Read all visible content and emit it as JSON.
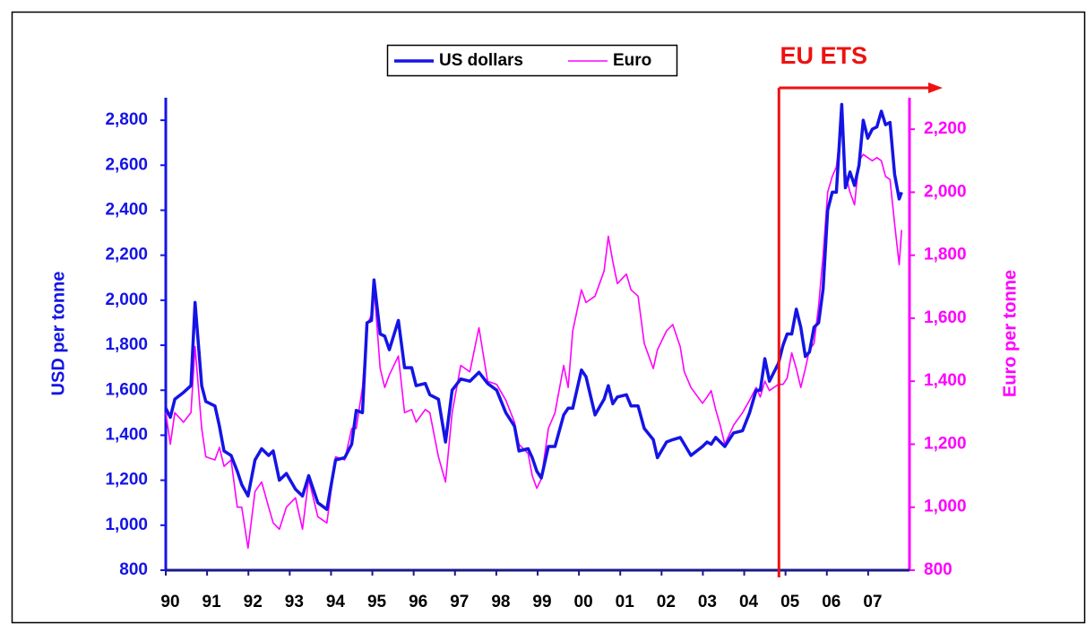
{
  "chart_data": {
    "type": "line",
    "y_label": "USD per tonne",
    "y2_label": "Euro per tonne",
    "legend": "top",
    "grid": false,
    "annotation": {
      "text": "EU ETS",
      "x": 2004.84,
      "color": "#ee1111"
    },
    "xlim": [
      1990,
      2008
    ],
    "xticks": [
      {
        "value": 1990,
        "label": "90"
      },
      {
        "value": 1991,
        "label": "91"
      },
      {
        "value": 1992,
        "label": "92"
      },
      {
        "value": 1993,
        "label": "93"
      },
      {
        "value": 1994,
        "label": "94"
      },
      {
        "value": 1995,
        "label": "95"
      },
      {
        "value": 1996,
        "label": "96"
      },
      {
        "value": 1997,
        "label": "97"
      },
      {
        "value": 1998,
        "label": "98"
      },
      {
        "value": 1999,
        "label": "99"
      },
      {
        "value": 2000,
        "label": "00"
      },
      {
        "value": 2001,
        "label": "01"
      },
      {
        "value": 2002,
        "label": "02"
      },
      {
        "value": 2003,
        "label": "03"
      },
      {
        "value": 2004,
        "label": "04"
      },
      {
        "value": 2005,
        "label": "05"
      },
      {
        "value": 2006,
        "label": "06"
      },
      {
        "value": 2007,
        "label": "07"
      }
    ],
    "ylim": [
      800,
      2900
    ],
    "yticks": [
      800,
      {
        "value": 1000,
        "label": "1,000"
      },
      {
        "value": 1200,
        "label": "1,200"
      },
      {
        "value": 1400,
        "label": "1,400"
      },
      {
        "value": 1600,
        "label": "1,600"
      },
      {
        "value": 1800,
        "label": "1,800"
      },
      {
        "value": 2000,
        "label": "2,000"
      },
      {
        "value": 2200,
        "label": "2,200"
      },
      {
        "value": 2400,
        "label": "2,400"
      },
      {
        "value": 2600,
        "label": "2,600"
      },
      {
        "value": 2800,
        "label": "2,800"
      }
    ],
    "y2lim": [
      800,
      2300
    ],
    "y2ticks": [
      800,
      {
        "value": 1000,
        "label": "1,000"
      },
      {
        "value": 1200,
        "label": "1,200"
      },
      {
        "value": 1400,
        "label": "1,400"
      },
      {
        "value": 1600,
        "label": "1,600"
      },
      {
        "value": 1800,
        "label": "1,800"
      },
      {
        "value": 2000,
        "label": "2,000"
      },
      {
        "value": 2200,
        "label": "2,200"
      }
    ],
    "x": [
      1990.0,
      1990.11,
      1990.22,
      1990.43,
      1990.61,
      1990.71,
      1990.87,
      1990.97,
      1991.19,
      1991.3,
      1991.41,
      1991.58,
      1991.73,
      1991.84,
      1991.99,
      1992.16,
      1992.32,
      1992.49,
      1992.6,
      1992.75,
      1992.92,
      1993.14,
      1993.31,
      1993.46,
      1993.68,
      1993.9,
      1994.11,
      1994.33,
      1994.5,
      1994.61,
      1994.76,
      1994.87,
      1994.98,
      1995.04,
      1995.19,
      1995.3,
      1995.41,
      1995.63,
      1995.78,
      1995.95,
      1996.06,
      1996.28,
      1996.39,
      1996.6,
      1996.77,
      1996.93,
      1997.14,
      1997.36,
      1997.58,
      1997.79,
      1998.01,
      1998.23,
      1998.44,
      1998.55,
      1998.77,
      1998.87,
      1998.98,
      1999.09,
      1999.26,
      1999.42,
      1999.63,
      1999.74,
      1999.85,
      2000.06,
      2000.17,
      2000.39,
      2000.61,
      2000.71,
      2000.82,
      2000.93,
      2001.15,
      2001.26,
      2001.43,
      2001.58,
      2001.8,
      2001.9,
      2002.12,
      2002.27,
      2002.45,
      2002.55,
      2002.71,
      2002.99,
      2003.1,
      2003.2,
      2003.31,
      2003.42,
      2003.53,
      2003.74,
      2003.96,
      2004.13,
      2004.29,
      2004.39,
      2004.5,
      2004.61,
      2004.83,
      2004.94,
      2005.04,
      2005.15,
      2005.26,
      2005.37,
      2005.48,
      2005.58,
      2005.69,
      2005.8,
      2005.91,
      2006.02,
      2006.13,
      2006.23,
      2006.36,
      2006.45,
      2006.56,
      2006.67,
      2006.78,
      2006.88,
      2006.99,
      2007.1,
      2007.21,
      2007.32,
      2007.42,
      2007.53,
      2007.64,
      2007.75,
      2007.81
    ],
    "series": [
      {
        "name": "US dollars",
        "color": "#1414e6",
        "width": 3.5,
        "values": [
          1520,
          1480,
          1560,
          1590,
          1620,
          1990,
          1620,
          1550,
          1530,
          1440,
          1330,
          1310,
          1240,
          1180,
          1130,
          1290,
          1340,
          1310,
          1330,
          1200,
          1230,
          1160,
          1130,
          1220,
          1100,
          1070,
          1290,
          1300,
          1360,
          1510,
          1500,
          1900,
          1910,
          2090,
          1850,
          1840,
          1780,
          1910,
          1700,
          1700,
          1620,
          1630,
          1580,
          1560,
          1370,
          1600,
          1650,
          1640,
          1680,
          1630,
          1600,
          1500,
          1440,
          1330,
          1340,
          1300,
          1240,
          1210,
          1350,
          1350,
          1490,
          1520,
          1520,
          1690,
          1660,
          1490,
          1560,
          1620,
          1540,
          1570,
          1580,
          1530,
          1530,
          1430,
          1380,
          1300,
          1370,
          1380,
          1390,
          1360,
          1310,
          1350,
          1370,
          1360,
          1390,
          1370,
          1350,
          1410,
          1420,
          1500,
          1600,
          1600,
          1740,
          1640,
          1720,
          1800,
          1850,
          1850,
          1960,
          1880,
          1750,
          1770,
          1880,
          1900,
          2050,
          2400,
          2480,
          2480,
          2870,
          2500,
          2570,
          2510,
          2600,
          2800,
          2720,
          2760,
          2770,
          2840,
          2780,
          2790,
          2560,
          2450,
          2480
        ]
      },
      {
        "name": "Euro",
        "color": "#ff00ff",
        "width": 1.6,
        "axis": "y2",
        "values": [
          1300,
          1200,
          1300,
          1270,
          1300,
          1510,
          1250,
          1160,
          1150,
          1190,
          1130,
          1150,
          1000,
          1000,
          870,
          1050,
          1080,
          1000,
          950,
          930,
          1000,
          1030,
          930,
          1090,
          970,
          950,
          1160,
          1150,
          1250,
          1250,
          1380,
          1580,
          1610,
          1700,
          1440,
          1380,
          1420,
          1480,
          1300,
          1310,
          1270,
          1310,
          1300,
          1160,
          1080,
          1300,
          1450,
          1430,
          1570,
          1400,
          1390,
          1340,
          1270,
          1200,
          1170,
          1100,
          1060,
          1090,
          1250,
          1300,
          1450,
          1380,
          1560,
          1690,
          1650,
          1670,
          1750,
          1860,
          1780,
          1710,
          1740,
          1690,
          1670,
          1520,
          1440,
          1500,
          1560,
          1580,
          1510,
          1430,
          1380,
          1330,
          1350,
          1370,
          1310,
          1260,
          1200,
          1260,
          1300,
          1340,
          1380,
          1350,
          1400,
          1370,
          1390,
          1390,
          1410,
          1490,
          1440,
          1380,
          1440,
          1500,
          1520,
          1640,
          1800,
          2000,
          2050,
          2080,
          2240,
          2060,
          2000,
          1960,
          2100,
          2120,
          2110,
          2100,
          2110,
          2100,
          2050,
          2040,
          1900,
          1770,
          1880
        ]
      }
    ]
  }
}
